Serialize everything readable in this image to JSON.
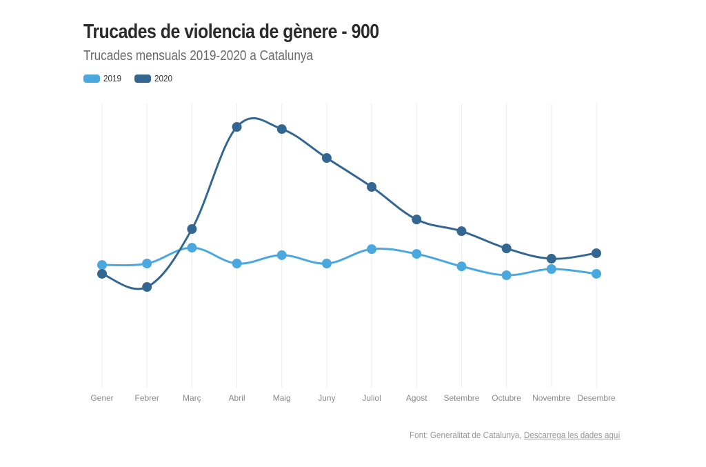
{
  "chart_data": {
    "type": "line",
    "title": "Trucades de violencia de gènere - 900",
    "subtitle": "Trucades mensuals 2019-2020 a Catalunya",
    "xlabel": "",
    "ylabel": "",
    "ylim": [
      0,
      1600
    ],
    "grid": "vertical",
    "legend_position": "top-left",
    "categories": [
      "Gener",
      "Febrer",
      "Març",
      "Abril",
      "Maig",
      "Juny",
      "Juliol",
      "Agost",
      "Setembre",
      "Octubre",
      "Novembre",
      "Desembre"
    ],
    "series": [
      {
        "name": "2019",
        "color": "#4aa8de",
        "values": [
          691,
          699,
          788,
          699,
          746,
          699,
          780,
          753,
          683,
          633,
          668,
          641
        ]
      },
      {
        "name": "2020",
        "color": "#336792",
        "values": [
          641,
          567,
          893,
          1468,
          1456,
          1293,
          1130,
          947,
          881,
          784,
          726,
          757
        ]
      }
    ]
  },
  "legend": {
    "items": [
      {
        "label": "2019",
        "color": "#4aa8de"
      },
      {
        "label": "2020",
        "color": "#336792"
      }
    ]
  },
  "footer": {
    "source_text": "Font: Generalitat de Catalunya, ",
    "link_text": "Descarrega les dades aquí"
  }
}
